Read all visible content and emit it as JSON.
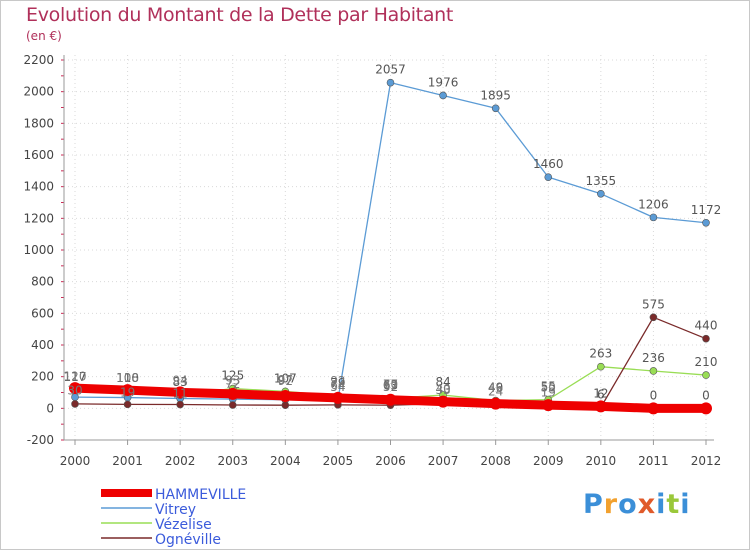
{
  "title": "Evolution du Montant de la Dette par Habitant",
  "subtitle": "(en €)",
  "logo": {
    "text": "Proxiti",
    "colors": [
      "#3b8fd8",
      "#f2a12e",
      "#3b8fd8",
      "#e05a2a",
      "#3b8fd8",
      "#9ac83a",
      "#3b8fd8"
    ]
  },
  "chart_data": {
    "type": "line",
    "x": [
      "2000",
      "2001",
      "2002",
      "2003",
      "2004",
      "2005",
      "2006",
      "2007",
      "2008",
      "2009",
      "2010",
      "2011",
      "2012"
    ],
    "ylim": [
      -200,
      2200
    ],
    "yticks": [
      "-200",
      "0",
      "200",
      "400",
      "600",
      "800",
      "1000",
      "1200",
      "1400",
      "1600",
      "1800",
      "2000",
      "2200"
    ],
    "grid": true,
    "legend_position": "bottom-left",
    "series": [
      {
        "name": "HAMMEVILLE",
        "color": "#ee0000",
        "values": [
          128,
          115,
          101,
          91,
          78,
          66,
          54,
          42,
          30,
          20,
          12,
          0,
          0
        ],
        "labels": [
          "",
          "",
          "",
          "",
          "",
          "",
          "",
          "",
          "",
          "",
          "12",
          "0",
          "0"
        ]
      },
      {
        "name": "Vitrey",
        "color": "#5b9bd5",
        "values": [
          71,
          68,
          62,
          58,
          54,
          53,
          2057,
          1976,
          1895,
          1460,
          1355,
          1206,
          1172
        ],
        "labels": [
          "",
          "",
          "",
          "",
          "",
          "",
          "2057",
          "1976",
          "1895",
          "1460",
          "1355",
          "1206",
          "1172"
        ]
      },
      {
        "name": "Vézelise",
        "color": "#99dd55",
        "values": [
          117,
          110,
          83,
          125,
          107,
          79,
          63,
          84,
          49,
          55,
          263,
          236,
          210
        ],
        "labels": [
          "117",
          "110",
          "83",
          "125",
          "107",
          "79",
          "63",
          "84",
          "49",
          "55",
          "263",
          "236",
          "210"
        ]
      },
      {
        "name": "Ognéville",
        "color": "#7a2a2a",
        "values": [
          28,
          25,
          24,
          21,
          20,
          22,
          20,
          30,
          19,
          21,
          6,
          575,
          440
        ],
        "labels": [
          "",
          "",
          "",
          "",
          "",
          "",
          "",
          "",
          "",
          "",
          "6",
          "575",
          "440"
        ]
      }
    ],
    "extra_labels": [
      "120",
      "108",
      "94",
      "93",
      "97",
      "64",
      "52",
      "40",
      "24",
      "19",
      "30",
      "19",
      "11",
      "72",
      "92",
      "92",
      "70",
      "33",
      "46",
      "50",
      "54",
      "67"
    ]
  }
}
